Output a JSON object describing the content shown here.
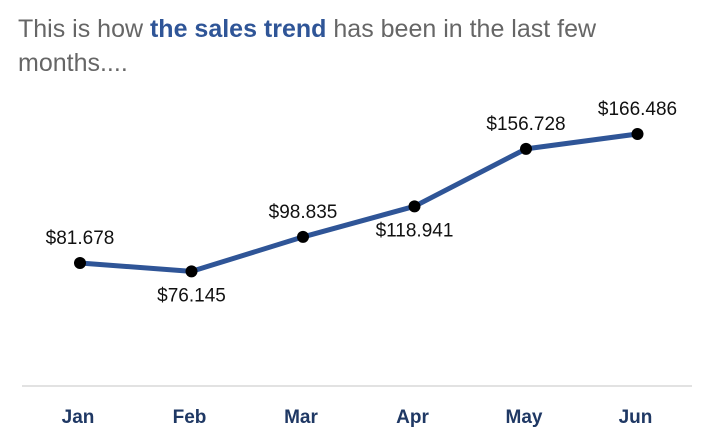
{
  "title": {
    "prefix": "This is how ",
    "highlight": "the sales trend",
    "suffix": " has been in the last few months...."
  },
  "colors": {
    "line": "#2F5597",
    "marker": "#000000",
    "tick_label": "#1F3864",
    "axis": "#D9D9D9",
    "title_text": "#666666",
    "title_highlight": "#2F5597"
  },
  "chart_data": {
    "type": "line",
    "categories": [
      "Jan",
      "Feb",
      "Mar",
      "Apr",
      "May",
      "Jun"
    ],
    "values": [
      81678,
      76145,
      98835,
      118941,
      156728,
      166486
    ],
    "data_labels": [
      "$81.678",
      "$76.145",
      "$98.835",
      "$118.941",
      "$156.728",
      "$166.486"
    ],
    "label_placement": [
      "above",
      "below",
      "above",
      "below",
      "above",
      "above"
    ],
    "grid": false,
    "legend": "none",
    "markers": true
  }
}
